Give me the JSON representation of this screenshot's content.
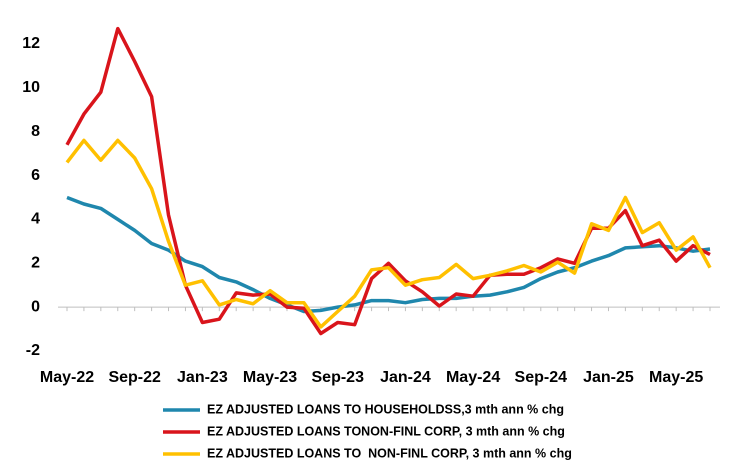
{
  "chart_data": {
    "type": "line",
    "categories": [
      "May-22",
      null,
      null,
      null,
      "Sep-22",
      null,
      null,
      null,
      "Jan-23",
      null,
      null,
      null,
      "May-23",
      null,
      null,
      null,
      "Sep-23",
      null,
      null,
      null,
      "Jan-24",
      null,
      null,
      null,
      "May-24",
      null,
      null,
      null,
      "Sep-24",
      null,
      null,
      null,
      "Jan-25",
      null,
      null,
      null,
      "May-25",
      null,
      null
    ],
    "series": [
      {
        "name": "EZ ADJUSTED LOANS TO HOUSEHOLDSS,3 mth ann % chg",
        "color": "#1f87ad",
        "values": [
          5.0,
          4.7,
          4.5,
          4.0,
          3.5,
          2.9,
          2.6,
          2.1,
          1.85,
          1.35,
          1.15,
          0.8,
          0.4,
          0.1,
          -0.2,
          -0.15,
          0.0,
          0.1,
          0.3,
          0.3,
          0.2,
          0.35,
          0.4,
          0.4,
          0.5,
          0.55,
          0.7,
          0.9,
          1.3,
          1.6,
          1.8,
          2.1,
          2.35,
          2.7,
          2.75,
          2.8,
          2.7,
          2.55,
          2.65
        ]
      },
      {
        "name": "EZ ADJUSTED LOANS TONON-FINL CORP, 3 mth ann % chg",
        "color": "#d9141b",
        "values": [
          7.4,
          8.8,
          9.8,
          12.7,
          11.2,
          9.6,
          4.2,
          1.0,
          -0.7,
          -0.55,
          0.65,
          0.55,
          0.6,
          0.0,
          -0.05,
          -1.2,
          -0.7,
          -0.8,
          1.3,
          2.0,
          1.2,
          0.7,
          0.05,
          0.6,
          0.5,
          1.45,
          1.5,
          1.5,
          1.8,
          2.2,
          2.0,
          3.6,
          3.6,
          4.4,
          2.8,
          3.05,
          2.1,
          2.8,
          2.4
        ]
      },
      {
        "name": "EZ ADJUSTED LOANS TO  NON-FINL CORP, 3 mth ann % chg",
        "color": "#ffc000",
        "values": [
          6.6,
          7.6,
          6.7,
          7.6,
          6.8,
          5.4,
          3.0,
          1.0,
          1.2,
          0.1,
          0.35,
          0.15,
          0.75,
          0.2,
          0.2,
          -0.9,
          -0.2,
          0.5,
          1.7,
          1.8,
          1.0,
          1.25,
          1.35,
          1.95,
          1.3,
          1.45,
          1.65,
          1.9,
          1.6,
          2.05,
          1.55,
          3.8,
          3.5,
          5.0,
          3.4,
          3.85,
          2.6,
          3.2,
          1.8
        ]
      }
    ],
    "ylim": [
      -2,
      13
    ],
    "yticks": [
      -2,
      0,
      2,
      4,
      6,
      8,
      10,
      12
    ],
    "grid": false,
    "legend": "bottom"
  }
}
